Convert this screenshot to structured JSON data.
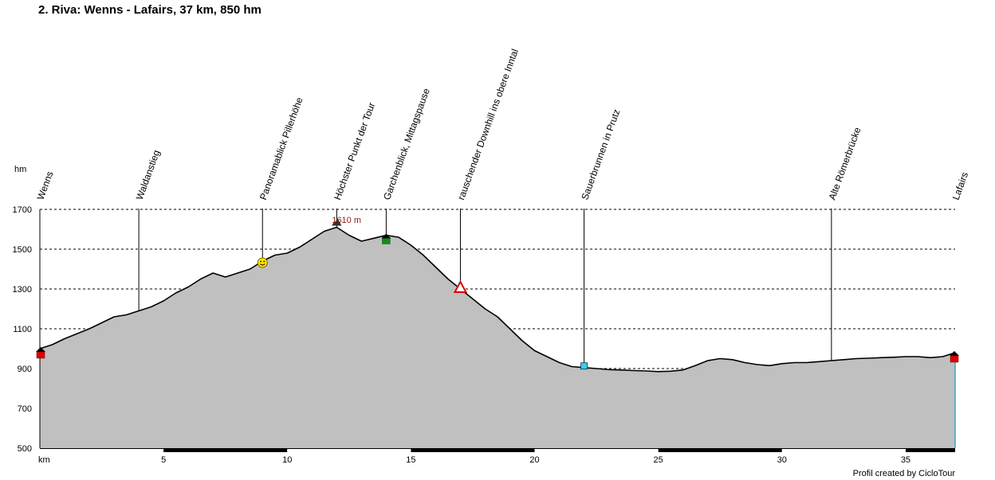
{
  "title": "2. Riva: Wenns - Lafairs, 37 km, 850 hm",
  "credit": "Profil created by CicloTour",
  "chart_data": {
    "type": "area",
    "title": "2. Riva: Wenns - Lafairs, 37 km, 850 hm",
    "xlabel": "km",
    "ylabel": "hm",
    "xlim": [
      0,
      37
    ],
    "ylim": [
      500,
      1700
    ],
    "x_ticks": [
      5,
      10,
      15,
      20,
      25,
      30,
      35
    ],
    "y_ticks": [
      500,
      700,
      900,
      1100,
      1300,
      1500,
      1700
    ],
    "grid": true,
    "fill_color": "#c0c0c0",
    "line_color": "#000000",
    "series": [
      {
        "x": [
          0,
          0.5,
          1,
          1.5,
          2,
          2.5,
          3,
          3.5,
          4,
          4.5,
          5,
          5.5,
          6,
          6.5,
          7,
          7.5,
          8,
          8.5,
          9,
          9.5,
          10,
          10.5,
          11,
          11.5,
          12,
          12.5,
          13,
          13.5,
          14,
          14.5,
          15,
          15.5,
          16,
          16.5,
          17,
          17.5,
          18,
          18.5,
          19,
          19.5,
          20,
          20.5,
          21,
          21.5,
          22,
          22.5,
          23,
          23.5,
          24,
          24.5,
          25,
          25.5,
          26,
          26.5,
          27,
          27.5,
          28,
          28.5,
          29,
          29.5,
          30,
          30.5,
          31,
          31.5,
          32,
          32.5,
          33,
          33.5,
          34,
          34.5,
          35,
          35.5,
          36,
          36.5,
          37
        ],
        "y": [
          1000,
          1020,
          1050,
          1075,
          1100,
          1130,
          1160,
          1170,
          1190,
          1210,
          1240,
          1280,
          1310,
          1350,
          1380,
          1360,
          1380,
          1400,
          1440,
          1470,
          1480,
          1510,
          1550,
          1590,
          1610,
          1570,
          1540,
          1555,
          1570,
          1560,
          1520,
          1470,
          1410,
          1350,
          1300,
          1250,
          1200,
          1160,
          1100,
          1040,
          990,
          960,
          930,
          910,
          905,
          900,
          895,
          893,
          890,
          888,
          885,
          887,
          893,
          915,
          940,
          950,
          945,
          930,
          920,
          915,
          925,
          930,
          930,
          935,
          940,
          945,
          950,
          952,
          955,
          957,
          960,
          960,
          955,
          960,
          980
        ]
      }
    ],
    "markers": [
      {
        "km": 12,
        "label": "1610 m",
        "elevation": 1610
      }
    ],
    "waypoints": [
      {
        "km": 0,
        "label": "Wenns",
        "icon": "start-red-square-icon"
      },
      {
        "km": 4,
        "label": "Waldanstieg",
        "icon": ""
      },
      {
        "km": 9,
        "label": "Panoramablick Pillerhöhe",
        "icon": "smiley-icon"
      },
      {
        "km": 12,
        "label": "Höchster Punkt der Tour",
        "icon": "summit-icon"
      },
      {
        "km": 14,
        "label": "Garchenblick, Mittagspause",
        "icon": "green-house-icon"
      },
      {
        "km": 17,
        "label": "rauschender Downhill ins obere Inntal",
        "icon": "warning-triangle-icon"
      },
      {
        "km": 22,
        "label": "Sauerbrunnen in Prutz",
        "icon": "cyan-fountain-icon"
      },
      {
        "km": 32,
        "label": "Alte Römerbrücke",
        "icon": ""
      },
      {
        "km": 37,
        "label": "Lafairs",
        "icon": "finish-red-square-icon"
      }
    ]
  }
}
